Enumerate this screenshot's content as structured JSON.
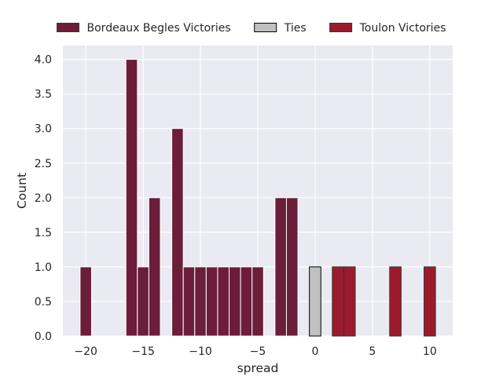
{
  "chart_data": {
    "type": "bar",
    "xlabel": "spread",
    "ylabel": "Count",
    "xlim": [
      -22,
      12
    ],
    "ylim": [
      0,
      4.2
    ],
    "x_ticks": [
      -20,
      -15,
      -10,
      -5,
      0,
      5,
      10
    ],
    "x_tick_labels": [
      "−20",
      "−15",
      "−10",
      "−5",
      "0",
      "5",
      "10"
    ],
    "y_ticks": [
      0,
      0.5,
      1.0,
      1.5,
      2.0,
      2.5,
      3.0,
      3.5,
      4.0
    ],
    "y_tick_labels": [
      "0.0",
      "0.5",
      "1.0",
      "1.5",
      "2.0",
      "2.5",
      "3.0",
      "3.5",
      "4.0"
    ],
    "grid": true,
    "legend_position": "top",
    "bin_width": 1,
    "series": [
      {
        "name": "Bordeaux Begles Victories",
        "color": "#6b1d3a",
        "edge_color": "#ffffff",
        "x": [
          -20,
          -16,
          -15,
          -14,
          -12,
          -11,
          -10,
          -9,
          -8,
          -7,
          -6,
          -5,
          -3,
          -2
        ],
        "values": [
          1,
          4,
          1,
          2,
          3,
          1,
          1,
          1,
          1,
          1,
          1,
          1,
          2,
          2
        ]
      },
      {
        "name": "Ties",
        "color": "#c0c0c0",
        "edge_color": "#000000",
        "x": [
          0
        ],
        "values": [
          1
        ]
      },
      {
        "name": "Toulon Victories",
        "color": "#9b1b2d",
        "edge_color": "#333333",
        "x": [
          2,
          3,
          7,
          10
        ],
        "values": [
          1,
          1,
          1,
          1
        ]
      }
    ]
  }
}
